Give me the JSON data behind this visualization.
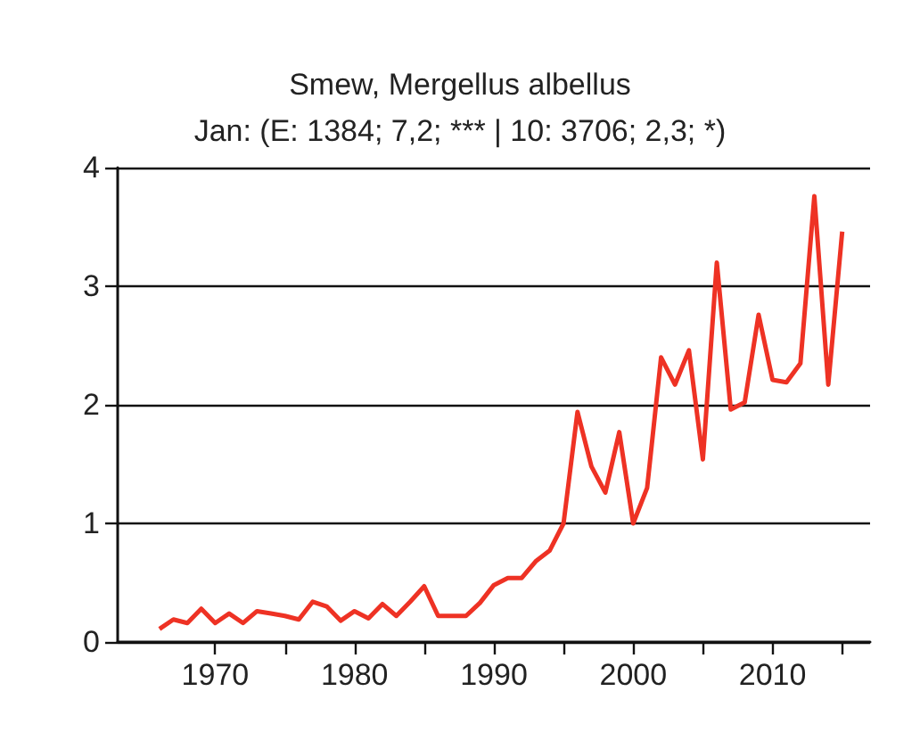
{
  "chart_data": {
    "type": "line",
    "title": "Smew, Mergellus albellus",
    "subtitle": "Jan: (E: 1384; 7,2; *** | 10: 3706; 2,3; *)",
    "x": [
      1966,
      1967,
      1968,
      1969,
      1970,
      1971,
      1972,
      1973,
      1974,
      1975,
      1976,
      1977,
      1978,
      1979,
      1980,
      1981,
      1982,
      1983,
      1984,
      1985,
      1986,
      1987,
      1988,
      1989,
      1990,
      1991,
      1992,
      1993,
      1994,
      1995,
      1996,
      1997,
      1998,
      1999,
      2000,
      2001,
      2002,
      2003,
      2004,
      2005,
      2006,
      2007,
      2008,
      2009,
      2010,
      2011,
      2012,
      2013,
      2014,
      2015
    ],
    "series": [
      {
        "color": "#ee3224",
        "values": [
          0.11,
          0.19,
          0.16,
          0.28,
          0.16,
          0.24,
          0.16,
          0.26,
          0.24,
          0.22,
          0.19,
          0.34,
          0.3,
          0.18,
          0.26,
          0.2,
          0.32,
          0.22,
          0.34,
          0.47,
          0.22,
          0.22,
          0.22,
          0.33,
          0.48,
          0.54,
          0.54,
          0.68,
          0.77,
          1.0,
          1.94,
          1.48,
          1.26,
          1.77,
          1.0,
          1.3,
          2.4,
          2.17,
          2.46,
          1.54,
          3.2,
          1.96,
          2.02,
          2.76,
          2.21,
          2.19,
          2.35,
          3.76,
          2.17,
          3.46
        ]
      }
    ],
    "xlim": [
      1963,
      2017
    ],
    "xticks": [
      1970,
      {
        "value": 1975,
        "label": null
      },
      1980,
      {
        "value": 1985,
        "label": null
      },
      1990,
      {
        "value": 1995,
        "label": null
      },
      2000,
      {
        "value": 2005,
        "label": null
      },
      2010,
      {
        "value": 2015,
        "label": null
      }
    ],
    "ylim": [
      0,
      4
    ],
    "yticks": [
      0,
      1,
      2,
      3,
      4
    ],
    "grid": "y",
    "marker": "none",
    "line_style": "solid"
  }
}
